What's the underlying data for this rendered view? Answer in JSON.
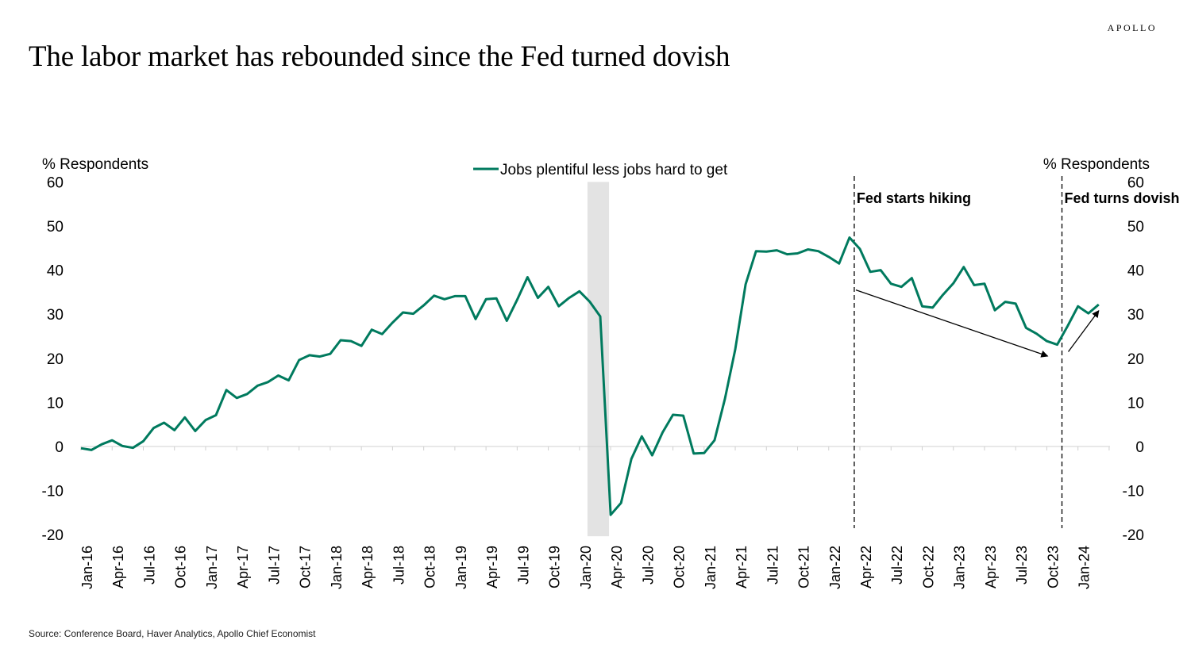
{
  "brand": "APOLLO",
  "title": "The labor market has rebounded since the Fed turned dovish",
  "source": "Source: Conference Board, Haver Analytics, Apollo Chief Economist",
  "colors": {
    "series": "#007a5e",
    "shade": "#e3e3e3",
    "axis": "#d0d0d0"
  },
  "chart_data": {
    "type": "line",
    "ylabel_left": "% Respondents",
    "ylabel_right": "% Respondents",
    "ylim": [
      -20,
      60
    ],
    "yticks": [
      "60",
      "50",
      "40",
      "30",
      "20",
      "10",
      "0",
      "-10",
      "-20"
    ],
    "x_tick_labels": [
      "Jan-16",
      "Apr-16",
      "Jul-16",
      "Oct-16",
      "Jan-17",
      "Apr-17",
      "Jul-17",
      "Oct-17",
      "Jan-18",
      "Apr-18",
      "Jul-18",
      "Oct-18",
      "Jan-19",
      "Apr-19",
      "Jul-19",
      "Oct-19",
      "Jan-20",
      "Apr-20",
      "Jul-20",
      "Oct-20",
      "Jan-21",
      "Apr-21",
      "Jul-21",
      "Oct-21",
      "Jan-22",
      "Apr-22",
      "Jul-22",
      "Oct-22",
      "Jan-23",
      "Apr-23",
      "Jul-23",
      "Oct-23",
      "Jan-24"
    ],
    "x_start": "2016-01",
    "legend_position": "top-center",
    "series": [
      {
        "name": "Jobs plentiful less jobs hard to get",
        "values": [
          -0.4,
          -0.8,
          0.5,
          1.4,
          0.1,
          -0.3,
          1.2,
          4.2,
          5.4,
          3.7,
          6.6,
          3.5,
          6.0,
          7.1,
          12.8,
          11.0,
          11.9,
          13.8,
          14.6,
          16.1,
          15.0,
          19.6,
          20.7,
          20.4,
          21.0,
          24.1,
          23.9,
          22.8,
          26.5,
          25.5,
          28.1,
          30.4,
          30.1,
          32.0,
          34.2,
          33.4,
          34.1,
          34.1,
          28.9,
          33.4,
          33.6,
          28.5,
          33.3,
          38.4,
          33.7,
          36.2,
          31.8,
          33.7,
          35.2,
          32.8,
          29.5,
          -15.5,
          -12.8,
          -2.8,
          2.3,
          -2.0,
          3.2,
          7.2,
          7.0,
          -1.6,
          -1.5,
          1.4,
          10.8,
          22.0,
          36.8,
          44.3,
          44.2,
          44.5,
          43.6,
          43.8,
          44.7,
          44.3,
          43.0,
          41.5,
          47.4,
          44.8,
          39.6,
          40.0,
          36.9,
          36.2,
          38.2,
          31.8,
          31.5,
          34.4,
          37.0,
          40.7,
          36.6,
          36.9,
          30.9,
          32.8,
          32.4,
          26.9,
          25.6,
          23.9,
          23.1,
          27.3,
          31.8,
          30.2,
          32.2
        ]
      }
    ],
    "shaded_period": [
      "2020-02",
      "2020-04"
    ],
    "annotations": [
      {
        "text": "Fed starts hiking",
        "date": "2022-03"
      },
      {
        "text": "Fed turns dovish",
        "date": "2023-11"
      }
    ]
  }
}
